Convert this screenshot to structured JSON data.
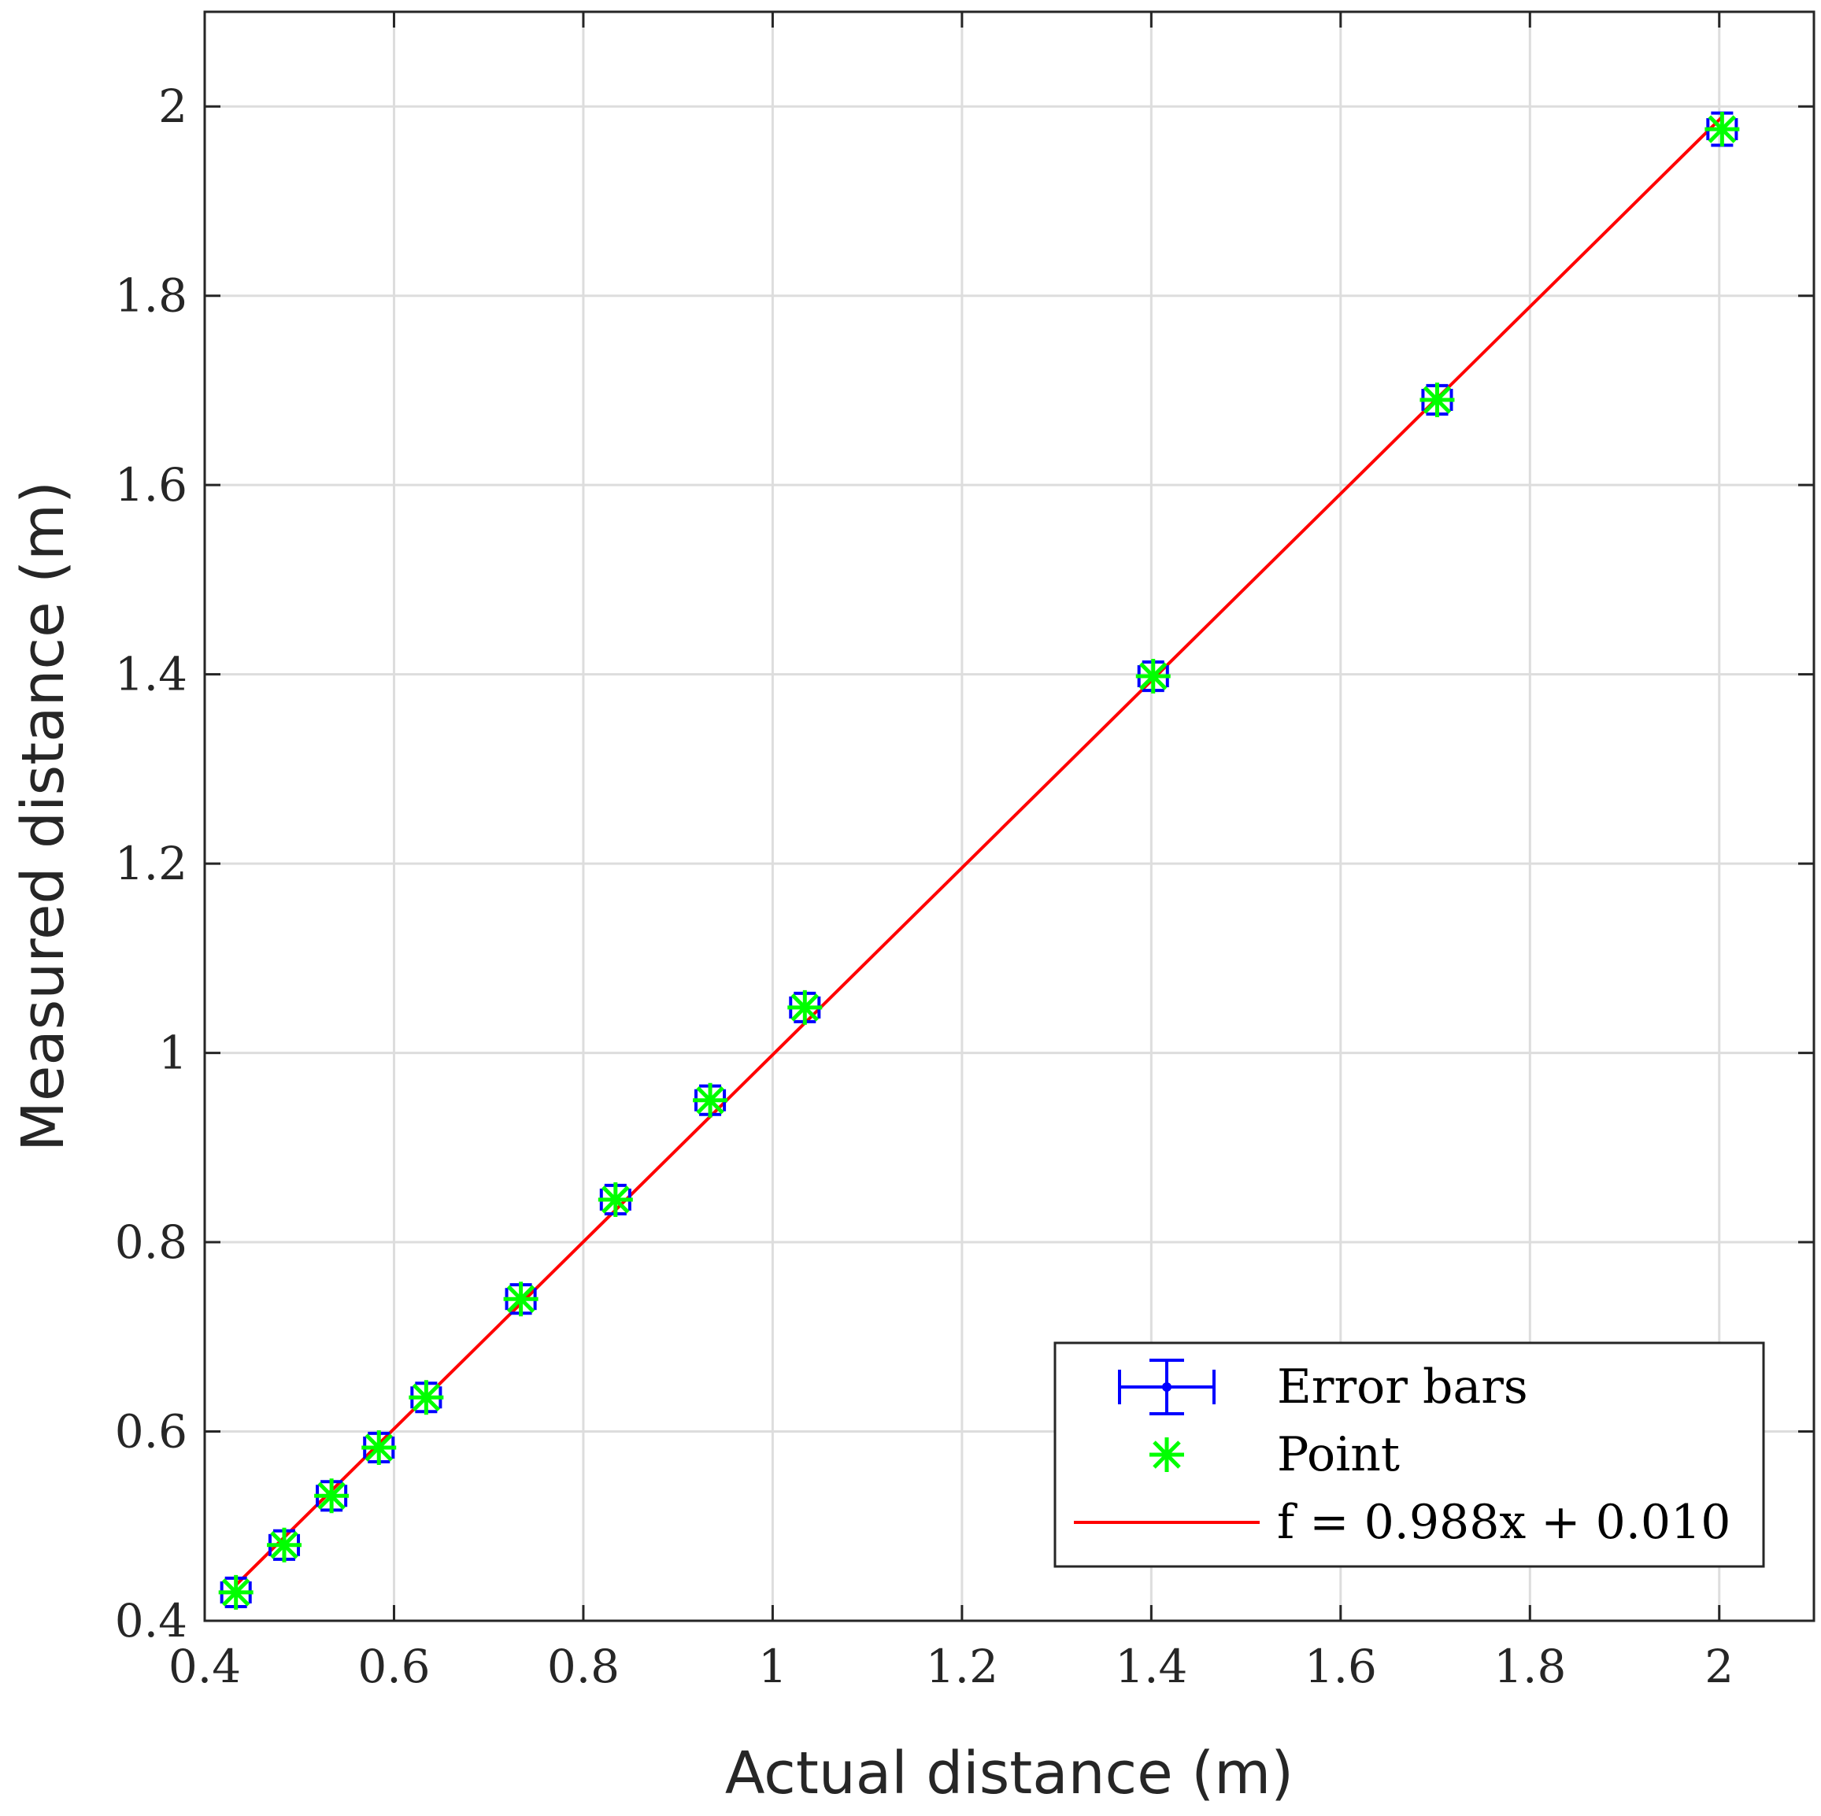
{
  "chart_data": {
    "type": "scatter",
    "title": "",
    "xlabel": "Actual distance (m)",
    "ylabel": "Measured distance (m)",
    "xlim": [
      0.4,
      2.1
    ],
    "ylim": [
      0.4,
      2.1
    ],
    "grid": true,
    "xticks": [
      0.4,
      0.6,
      0.8,
      1.0,
      1.2,
      1.4,
      1.6,
      1.8,
      2.0
    ],
    "yticks": [
      0.4,
      0.6,
      0.8,
      1.0,
      1.2,
      1.4,
      1.6,
      1.8,
      2.0
    ],
    "xtick_labels": [
      "0.4",
      "0.6",
      "0.8",
      "1",
      "1.2",
      "1.4",
      "1.6",
      "1.8",
      "2"
    ],
    "ytick_labels": [
      "0.4",
      "0.6",
      "0.8",
      "1",
      "1.2",
      "1.4",
      "1.6",
      "1.8",
      "2"
    ],
    "legend_position": "bottom-right",
    "colors": {
      "error_bars": "#0000ff",
      "point": "#00ff00",
      "fit": "#ff0000",
      "grid": "#dddddd",
      "axis": "#262626"
    },
    "series": [
      {
        "name": "Error bars",
        "kind": "errorbar",
        "x": [
          0.433,
          0.484,
          0.534,
          0.584,
          0.634,
          0.734,
          0.834,
          0.934,
          1.034,
          1.402,
          1.702,
          2.003
        ],
        "y": [
          0.43,
          0.48,
          0.532,
          0.583,
          0.636,
          0.74,
          0.845,
          0.95,
          1.048,
          1.398,
          1.69,
          1.976
        ],
        "xerr": [
          0.015,
          0.015,
          0.015,
          0.015,
          0.015,
          0.015,
          0.015,
          0.015,
          0.015,
          0.015,
          0.015,
          0.015
        ],
        "yerr": [
          0.015,
          0.015,
          0.015,
          0.015,
          0.015,
          0.015,
          0.015,
          0.015,
          0.015,
          0.015,
          0.015,
          0.017
        ]
      },
      {
        "name": "Point",
        "kind": "scatter",
        "x": [
          0.433,
          0.484,
          0.534,
          0.584,
          0.634,
          0.734,
          0.834,
          0.934,
          1.034,
          1.402,
          1.702,
          2.003
        ],
        "y": [
          0.43,
          0.48,
          0.532,
          0.583,
          0.636,
          0.74,
          0.845,
          0.95,
          1.048,
          1.398,
          1.69,
          1.976
        ]
      },
      {
        "name": "f = 0.988x + 0.010",
        "kind": "line",
        "slope": 0.988,
        "intercept": 0.01,
        "x_range": [
          0.433,
          2.003
        ]
      }
    ]
  }
}
